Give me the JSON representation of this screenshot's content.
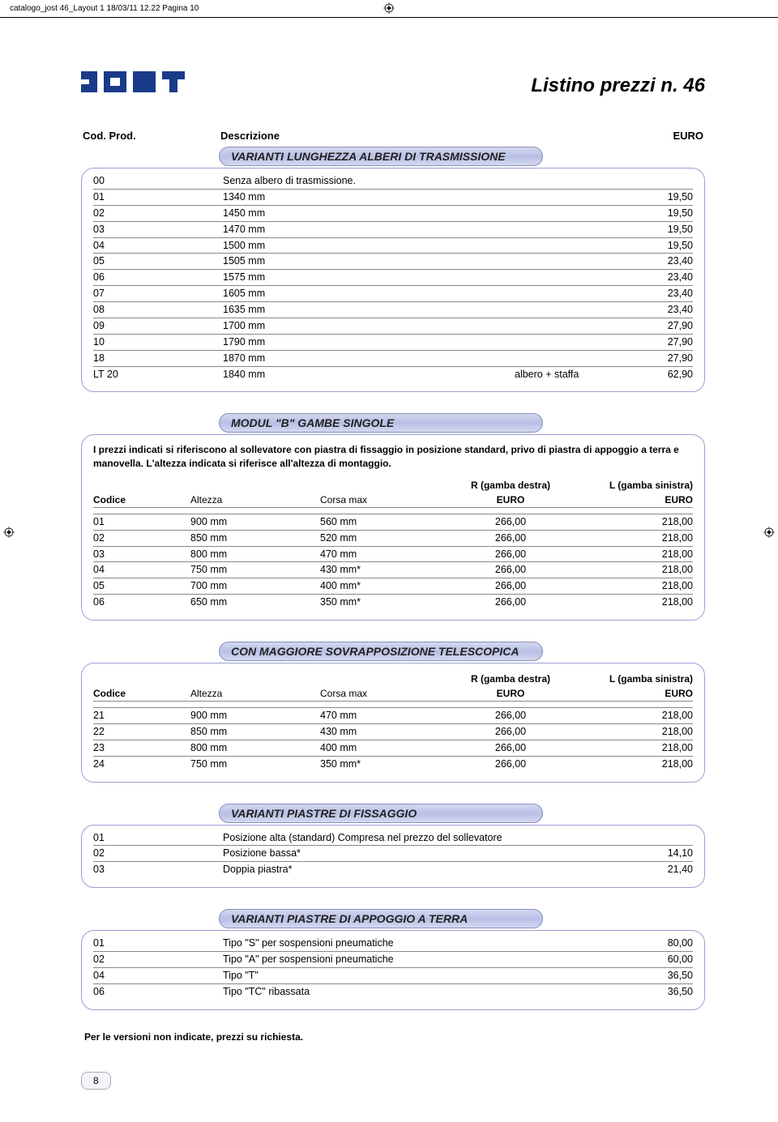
{
  "meta_bar": "catalogo_jost 46_Layout 1  18/03/11  12.22  Pagina 10",
  "page_title": "Listino prezzi n. 46",
  "col_head": {
    "c1": "Cod. Prod.",
    "c2": "Descrizione",
    "c3": "EURO"
  },
  "sec1": {
    "title": "VARIANTI LUNGHEZZA ALBERI DI TRASMISSIONE",
    "rows": [
      {
        "code": "00",
        "desc": "Senza albero di trasmissione.",
        "price": ""
      },
      {
        "code": "01",
        "desc": "1340 mm",
        "price": "19,50"
      },
      {
        "code": "02",
        "desc": "1450 mm",
        "price": "19,50"
      },
      {
        "code": "03",
        "desc": "1470 mm",
        "price": "19,50"
      },
      {
        "code": "04",
        "desc": "1500 mm",
        "price": "19,50"
      },
      {
        "code": "05",
        "desc": "1505 mm",
        "price": "23,40"
      },
      {
        "code": "06",
        "desc": "1575 mm",
        "price": "23,40"
      },
      {
        "code": "07",
        "desc": "1605 mm",
        "price": "23,40"
      },
      {
        "code": "08",
        "desc": "1635 mm",
        "price": "23,40"
      },
      {
        "code": "09",
        "desc": "1700 mm",
        "price": "27,90"
      },
      {
        "code": "10",
        "desc": "1790 mm",
        "price": "27,90"
      },
      {
        "code": "18",
        "desc": "1870 mm",
        "price": "27,90"
      },
      {
        "code": "LT 20",
        "desc": "1840 mm",
        "extra": "albero + staffa",
        "price": "62,90"
      }
    ]
  },
  "sec2": {
    "title": "MODUL \"B\" GAMBE SINGOLE",
    "note": "I prezzi indicati si riferiscono al sollevatore con piastra di fissaggio in posizione standard, privo di piastra di appoggio a terra e manovella. L'altezza indicata si riferisce all'altezza di montaggio.",
    "head_top": {
      "r": "R (gamba destra)",
      "l": "L (gamba sinistra)"
    },
    "head_bot": {
      "c1": "Codice",
      "c2": "Altezza",
      "c3": "Corsa max",
      "c4": "EURO",
      "c5": "EURO"
    },
    "rows": [
      {
        "code": "01",
        "alt": "900 mm",
        "corsa": "560 mm",
        "p1": "266,00",
        "p2": "218,00"
      },
      {
        "code": "02",
        "alt": "850 mm",
        "corsa": "520 mm",
        "p1": "266,00",
        "p2": "218,00"
      },
      {
        "code": "03",
        "alt": "800 mm",
        "corsa": "470 mm",
        "p1": "266,00",
        "p2": "218,00"
      },
      {
        "code": "04",
        "alt": "750 mm",
        "corsa": "430 mm*",
        "p1": "266,00",
        "p2": "218,00"
      },
      {
        "code": "05",
        "alt": "700 mm",
        "corsa": "400 mm*",
        "p1": "266,00",
        "p2": "218,00"
      },
      {
        "code": "06",
        "alt": "650 mm",
        "corsa": "350 mm*",
        "p1": "266,00",
        "p2": "218,00"
      }
    ]
  },
  "sec3": {
    "title": "CON MAGGIORE SOVRAPPOSIZIONE TELESCOPICA",
    "head_top": {
      "r": "R (gamba destra)",
      "l": "L (gamba sinistra)"
    },
    "head_bot": {
      "c1": "Codice",
      "c2": "Altezza",
      "c3": "Corsa max",
      "c4": "EURO",
      "c5": "EURO"
    },
    "rows": [
      {
        "code": "21",
        "alt": "900 mm",
        "corsa": "470 mm",
        "p1": "266,00",
        "p2": "218,00"
      },
      {
        "code": "22",
        "alt": "850 mm",
        "corsa": "430 mm",
        "p1": "266,00",
        "p2": "218,00"
      },
      {
        "code": "23",
        "alt": "800 mm",
        "corsa": "400 mm",
        "p1": "266,00",
        "p2": "218,00"
      },
      {
        "code": "24",
        "alt": "750 mm",
        "corsa": "350 mm*",
        "p1": "266,00",
        "p2": "218,00"
      }
    ]
  },
  "sec4": {
    "title": "VARIANTI PIASTRE DI FISSAGGIO",
    "rows": [
      {
        "code": "01",
        "desc": "Posizione alta (standard) Compresa nel prezzo del sollevatore",
        "price": ""
      },
      {
        "code": "02",
        "desc": "Posizione bassa*",
        "price": "14,10"
      },
      {
        "code": "03",
        "desc": "Doppia piastra*",
        "price": "21,40"
      }
    ]
  },
  "sec5": {
    "title": "VARIANTI PIASTRE DI APPOGGIO A TERRA",
    "rows": [
      {
        "code": "01",
        "desc": "Tipo \"S\" per sospensioni pneumatiche",
        "price": "80,00"
      },
      {
        "code": "02",
        "desc": "Tipo \"A\" per sospensioni pneumatiche",
        "price": "60,00"
      },
      {
        "code": "04",
        "desc": "Tipo \"T\"",
        "price": "36,50"
      },
      {
        "code": "06",
        "desc": "Tipo \"TC\" ribassata",
        "price": "36,50"
      }
    ]
  },
  "footnote": "Per le versioni non indicate, prezzi su richiesta.",
  "page_number": "8",
  "colors": {
    "brand": "#1a3a8a",
    "section_bg_light": "#d4d9f0",
    "section_bg_dark": "#b8bfe4",
    "section_border": "#8a8ec0",
    "box_border": "#9aa0d4"
  }
}
